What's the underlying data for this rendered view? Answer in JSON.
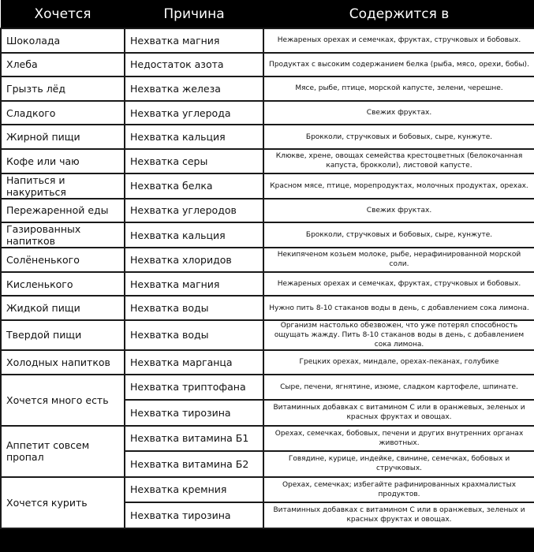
{
  "header": {
    "craving": "Хочется",
    "reason": "Причина",
    "source": "Содержится в"
  },
  "rows": [
    {
      "craving": "Шоколада",
      "reason": "Нехватка магния",
      "source": "Нежареных орехах и семечках, фруктах, стручковых и бобовых."
    },
    {
      "craving": "Хлеба",
      "reason": "Недостаток азота",
      "source": "Продуктах с высоким содержанием белка (рыба, мясо, орехи, бобы)."
    },
    {
      "craving": "Грызть лёд",
      "reason": "Нехватка железа",
      "source": "Мясе, рыбе, птице, морской капусте, зелени, черешне."
    },
    {
      "craving": "Сладкого",
      "reason": "Нехватка углерода",
      "source": "Свежих фруктах."
    },
    {
      "craving": "Жирной пищи",
      "reason": "Нехватка кальция",
      "source": "Брокколи, стручковых и бобовых, сыре, кунжуте."
    },
    {
      "craving": "Кофе или чаю",
      "reason": "Нехватка серы",
      "source": "Клюкве, хрене, овощах семейства крестоцветных (белокочанная капуста, брокколи), листовой капусте."
    },
    {
      "craving": "Напиться и накуриться",
      "reason": "Нехватка белка",
      "source": "Красном мясе, птице, морепродуктах, молочных продуктах, орехах."
    },
    {
      "craving": "Пережаренной еды",
      "reason": "Нехватка углеродов",
      "source": "Свежих фруктах."
    },
    {
      "craving": "Газированных напитков",
      "reason": "Нехватка кальция",
      "source": "Брокколи, стручковых и бобовых, сыре, кунжуте."
    },
    {
      "craving": "Солёненького",
      "reason": "Нехватка хлоридов",
      "source": "Некипяченом козьем молоке, рыбе, нерафинированной морской соли."
    },
    {
      "craving": "Кисленького",
      "reason": "Нехватка магния",
      "source": "Нежареных орехах и семечках, фруктах, стручковых и бобовых."
    },
    {
      "craving": "Жидкой пищи",
      "reason": "Нехватка воды",
      "source": "Нужно пить 8-10 стаканов воды в день, с добавлением сока лимона."
    },
    {
      "craving": "Твердой пищи",
      "reason": "Нехватка воды",
      "source": "Организм настолько обезвожен, что уже потерял способность ощущать жажду. Пить 8-10 стаканов воды в день, с добавлением сока лимона."
    },
    {
      "craving": "Холодных напитков",
      "reason": "Нехватка марганца",
      "source": "Грецких орехах, миндале, орехах-пеканах, голубике"
    }
  ],
  "groups": [
    {
      "craving": "Хочется много есть",
      "items": [
        {
          "reason": "Нехватка триптофана",
          "source": "Сыре, печени, ягнятине, изюме, сладком картофеле, шпинате."
        },
        {
          "reason": "Нехватка тирозина",
          "source": "Витаминных добавках с витамином С или в оранжевых, зеленых и красных фруктах и овощах."
        }
      ]
    },
    {
      "craving": "Аппетит совсем пропал",
      "items": [
        {
          "reason": "Нехватка витамина Б1",
          "source": "Орехах, семечках, бобовых, печени и других внутренних органах животных."
        },
        {
          "reason": "Нехватка витамина Б2",
          "source": "Говядине, курице, индейке, свинине, семечках, бобовых и стручковых."
        }
      ]
    },
    {
      "craving": "Хочется курить",
      "items": [
        {
          "reason": "Нехватка кремния",
          "source": "Орехах, семечках; избегайте рафинированных крахмалистых продуктов."
        },
        {
          "reason": "Нехватка тирозина",
          "source": "Витаминных добавках с витамином С или в оранжевых, зеленых и красных фруктах и овощах."
        }
      ]
    }
  ]
}
